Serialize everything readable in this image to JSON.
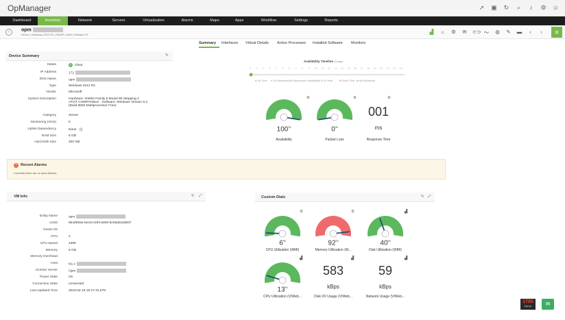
{
  "app": {
    "title": "OpManager"
  },
  "top_icons": [
    "rocket-icon",
    "monitor-icon",
    "refresh-icon",
    "search-icon",
    "bell-icon",
    "gear-icon",
    "user-icon"
  ],
  "nav": [
    "Dashboard",
    "Inventory",
    "Network",
    "Servers",
    "Virtualization",
    "Alarms",
    "Maps",
    "Apps",
    "Workflow",
    "Settings",
    "Reports"
  ],
  "nav_active": "Inventory",
  "device": {
    "name": "opm",
    "subtitle": "Server | Windows 2012 R2 | SNMP | WMI | VMware VF"
  },
  "tabs": [
    "Summary",
    "Interfaces",
    "Virtual Details",
    "Active Processes",
    "Installed Software",
    "Monitors"
  ],
  "tab_active": "Summary",
  "device_summary": {
    "title": "Device Summary",
    "rows": [
      {
        "label": "Status",
        "value": "Clear"
      },
      {
        "label": "IP Address",
        "value": "172"
      },
      {
        "label": "DNS Name",
        "value": "opm"
      },
      {
        "label": "Type",
        "value": "Windows 2012 R2"
      },
      {
        "label": "Vendor",
        "value": "Microsoft"
      },
      {
        "label": "System Description",
        "value": "Hardware: Intel64 Family 6 Model 85 Stepping 4"
      },
      {
        "label": "Category",
        "value": "Server"
      },
      {
        "label": "Monitoring (mins)",
        "value": "5"
      },
      {
        "label": "Uplink Dependency",
        "value": "None"
      },
      {
        "label": "RAM Size",
        "value": "8 GB"
      },
      {
        "label": "Hard Disk Size",
        "value": "200 GB"
      }
    ],
    "desc_line2": "AT/AT COMPATIBLE - Software: Windows Version 6.3",
    "desc_line3": "(Build 9600 Multiprocessor Free)"
  },
  "timeline": {
    "title": "Availability Timeline",
    "subtitle": "(Today)",
    "hours": [
      "0",
      "1",
      "2",
      "3",
      "4",
      "5",
      "6",
      "7",
      "8",
      "9",
      "10",
      "11",
      "12",
      "13",
      "14",
      "15",
      "16",
      "17",
      "18",
      "19",
      "20",
      "21",
      "22",
      "23"
    ],
    "legend": [
      "Up Time",
      "On Maintenance",
      "Dependent Unavailable",
      "On Hold",
      "Down Time",
      "Not Monitored"
    ],
    "legend_colors": [
      "#79b84a",
      "#7ab3d9",
      "#f0c22e",
      "#e89a4a",
      "#e05a5a",
      "#4a8fd6"
    ]
  },
  "summary_dials": [
    {
      "value": "100",
      "unit": "%",
      "caption": "Availability",
      "percent": 100
    },
    {
      "value": "0",
      "unit": "%",
      "caption": "Packet Loss",
      "percent": 0
    }
  ],
  "response_time": {
    "value": "001",
    "unit": "ms",
    "caption": "Response Time"
  },
  "alarms": {
    "title": "Recent Alarms",
    "message": "Currently there are no open Alarms."
  },
  "vm_info": {
    "title": "VM Info",
    "rows": [
      {
        "label": "Entity Name",
        "value": "opm"
      },
      {
        "label": "UUID",
        "value": "564d093e-5e43-e193-a082-bc59ab16d637"
      },
      {
        "label": "Guest OS",
        "value": ""
      },
      {
        "label": "CPU",
        "value": "2"
      },
      {
        "label": "CPU Speed",
        "value": "4390"
      },
      {
        "label": "Memory",
        "value": "8 GB"
      },
      {
        "label": "Memory Overhead",
        "value": ""
      },
      {
        "label": "Host",
        "value": "N1-c"
      },
      {
        "label": "vCenter Server",
        "value": "Opm"
      },
      {
        "label": "Power State",
        "value": "On"
      },
      {
        "label": "Connection State",
        "value": "connected"
      },
      {
        "label": "Last Updated Time",
        "value": "2019-02-18 15:27:31.578"
      }
    ]
  },
  "custom_dials": {
    "title": "Custom Dials",
    "gauges": [
      {
        "value": "6",
        "unit": "%",
        "caption": "CPU Utilization (WMI)",
        "percent": 6,
        "color": "#5cb85c"
      },
      {
        "value": "92",
        "unit": "%",
        "caption": "Memory Utilization (W...",
        "percent": 92,
        "color": "#ef6b6b"
      },
      {
        "value": "40",
        "unit": "%",
        "caption": "Disk Utilization (WMI)",
        "percent": 40,
        "color": "#5cb85c"
      },
      {
        "value": "13",
        "unit": "%",
        "caption": "CPU Utilization (VIWeb...",
        "percent": 13,
        "color": "#5cb85c"
      }
    ],
    "numbers": [
      {
        "value": "583",
        "unit": "kBps",
        "caption": "Disk I/O Usage (VIWeb..."
      },
      {
        "value": "59",
        "unit": "kBps",
        "caption": "Network Usage (VIWeb..."
      }
    ]
  },
  "alarm_badge": {
    "count": "1785",
    "label": "Alarms"
  },
  "colors": {
    "accent": "#79b84a",
    "dial_green": "#5cb85c",
    "dial_red": "#ef6b6b",
    "needle": "#1f4e79"
  }
}
